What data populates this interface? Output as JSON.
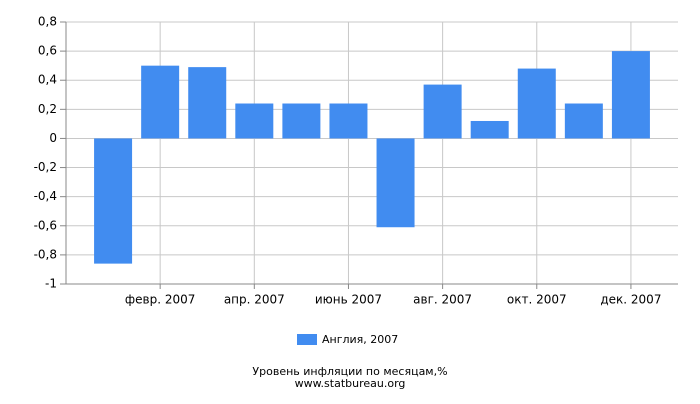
{
  "chart_data": {
    "type": "bar",
    "title": "Уровень инфляции по месяцам,%",
    "subtitle": "www.statbureau.org",
    "categories": [
      null,
      "февр. 2007",
      null,
      "апр. 2007",
      null,
      "июнь 2007",
      null,
      "авг. 2007",
      null,
      "окт. 2007",
      null,
      "дек. 2007"
    ],
    "series": [
      {
        "name": "Англия, 2007",
        "color": "#418cf0",
        "values": [
          -0.86,
          0.5,
          0.49,
          0.24,
          0.24,
          0.24,
          -0.61,
          0.37,
          0.12,
          0.48,
          0.24,
          0.6
        ]
      }
    ],
    "ylim": [
      -1,
      0.8
    ],
    "yticks": [
      -1,
      {
        "value": -0.8,
        "label": "-0,8"
      },
      {
        "value": -0.6,
        "label": "-0,6"
      },
      {
        "value": -0.4,
        "label": "-0,4"
      },
      {
        "value": -0.2,
        "label": "-0,2"
      },
      0,
      {
        "value": 0.2,
        "label": "0,2"
      },
      {
        "value": 0.4,
        "label": "0,4"
      },
      {
        "value": 0.6,
        "label": "0,6"
      },
      {
        "value": 0.8,
        "label": "0,8"
      }
    ],
    "grid": true
  }
}
